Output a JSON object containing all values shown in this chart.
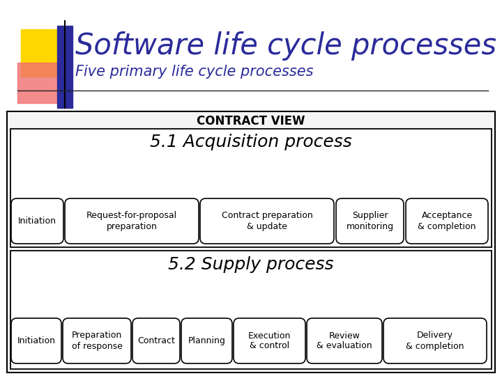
{
  "title": "Software life cycle processes",
  "subtitle": "Five primary life cycle processes",
  "title_color": "#2B2B9B",
  "subtitle_color": "#2B2B9B",
  "bg_color": "#FFFFFF",
  "header_text": "CONTRACT VIEW",
  "section1_title": "5.1 Acquisition process",
  "section1_boxes": [
    "Initiation",
    "Request-for-proposal\npreparation",
    "Contract preparation\n& update",
    "Supplier\nmonitoring",
    "Acceptance\n& completion"
  ],
  "section2_title": "5.2 Supply process",
  "section2_boxes": [
    "Initiation",
    "Preparation\nof response",
    "Contract",
    "Planning",
    "Execution\n& control",
    "Review\n& evaluation",
    "Delivery\n& completion"
  ],
  "outer_rect_color": "#000000",
  "inner_rect_color": "#000000",
  "box_fill": "#FFFFFF",
  "box_edge": "#000000",
  "deco_gold": "#FFD700",
  "deco_pink": "#F07070",
  "deco_blue": "#2B2B9B",
  "deco_line": "#333333"
}
